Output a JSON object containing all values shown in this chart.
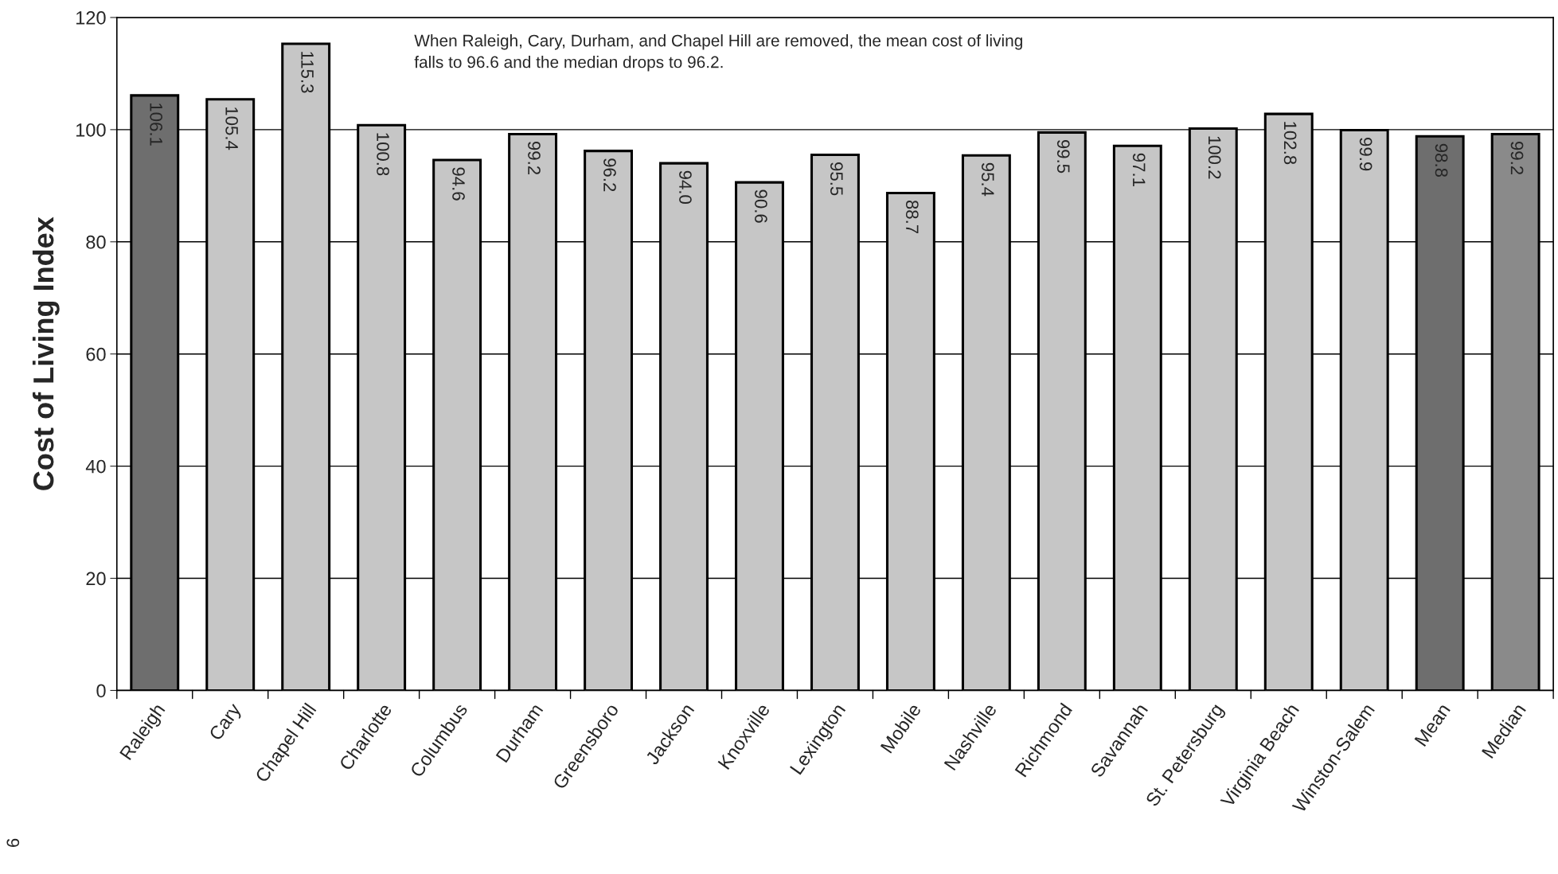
{
  "chart_data": {
    "type": "bar",
    "ylabel": "Cost of Living Index",
    "categories": [
      "Raleigh",
      "Cary",
      "Chapel Hill",
      "Charlotte",
      "Columbus",
      "Durham",
      "Greensboro",
      "Jackson",
      "Knoxville",
      "Lexington",
      "Mobile",
      "Nashville",
      "Richmond",
      "Savannah",
      "St. Petersburg",
      "Virginia Beach",
      "Winston-Salem",
      "Mean",
      "Median"
    ],
    "values": [
      106.1,
      105.4,
      115.3,
      100.8,
      94.6,
      99.2,
      96.2,
      94.0,
      90.6,
      95.5,
      88.7,
      95.4,
      99.5,
      97.1,
      100.2,
      102.8,
      99.9,
      98.8,
      99.2
    ],
    "colors": [
      "#6e6e6e",
      "#c6c6c6",
      "#c6c6c6",
      "#c6c6c6",
      "#c6c6c6",
      "#c6c6c6",
      "#c6c6c6",
      "#c6c6c6",
      "#c6c6c6",
      "#c6c6c6",
      "#c6c6c6",
      "#c6c6c6",
      "#c6c6c6",
      "#c6c6c6",
      "#c6c6c6",
      "#c6c6c6",
      "#c6c6c6",
      "#6e6e6e",
      "#8a8a8a"
    ],
    "ylim": [
      0,
      120
    ],
    "yticks": [
      0,
      20,
      40,
      60,
      80,
      100,
      120
    ],
    "grid": "y",
    "value_labels": [
      "106.1",
      "105.4",
      "115.3",
      "100.8",
      "94.6",
      "99.2",
      "96.2",
      "94.0",
      "90.6",
      "95.5",
      "88.7",
      "95.4",
      "99.5",
      "97.1",
      "100.2",
      "102.8",
      "99.9",
      "98.8",
      "99.2"
    ],
    "annotations": [
      "When Raleigh, Cary, Durham, and Chapel Hill are removed, the mean cost of living falls to 96.6 and the median drops to 96.2.",
      "6"
    ]
  }
}
